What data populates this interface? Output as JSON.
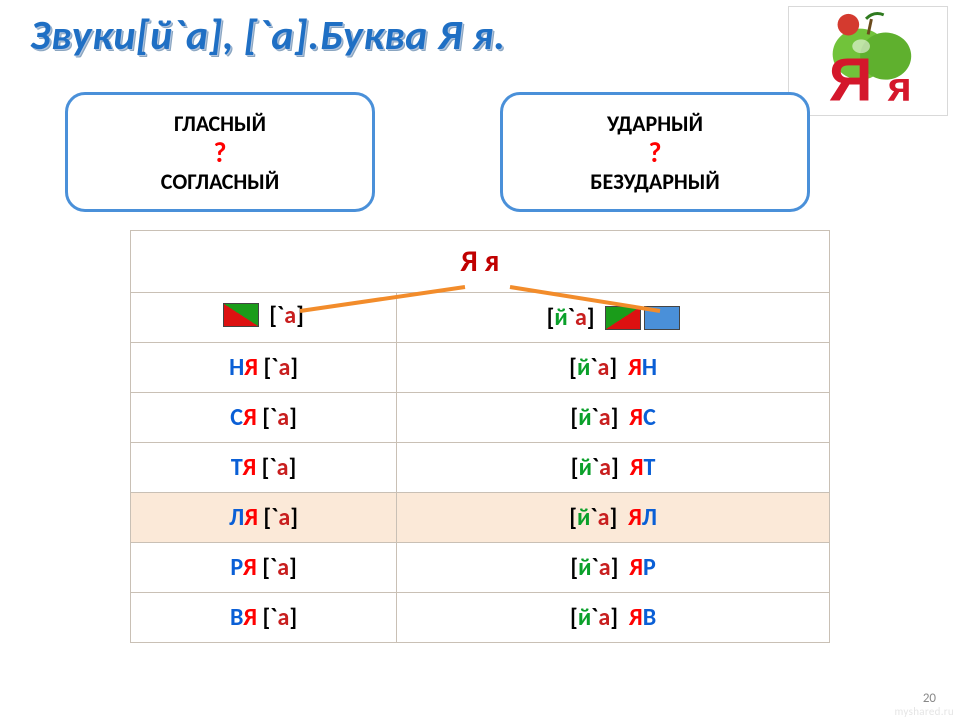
{
  "heading": "Звуки[й`а], [`а].Буква Я я.",
  "box_left": {
    "top": "ГЛАСНЫЙ",
    "q": "?",
    "bottom": "СОГЛАСНЫЙ"
  },
  "box_right": {
    "top": "УДАРНЫЙ",
    "q": "?",
    "bottom": "БЕЗУДАРНЫЙ"
  },
  "corner_letters": {
    "big": "Я",
    "small": "я"
  },
  "table": {
    "header": "Я я",
    "sub_left_phon": "[`а]",
    "sub_right_phon": "[й`а]",
    "rows": [
      {
        "left_cons": "Н",
        "right_cons": "Н",
        "alt": false
      },
      {
        "left_cons": "С",
        "right_cons": "С",
        "alt": false
      },
      {
        "left_cons": "Т",
        "right_cons": "Т",
        "alt": false
      },
      {
        "left_cons": "Л",
        "right_cons": "Л",
        "alt": true
      },
      {
        "left_cons": "Р",
        "right_cons": "Р",
        "alt": false
      },
      {
        "left_cons": "В",
        "right_cons": "В",
        "alt": false
      }
    ],
    "ya": "Я",
    "left_phon_open": "[`",
    "left_phon_a": "а",
    "left_phon_close": "]",
    "right_phon_open": "[",
    "right_phon_y": "й",
    "right_phon_mark": "`",
    "right_phon_a": "а",
    "right_phon_close": "]"
  },
  "colors": {
    "heading": "#1f6fc4",
    "box_border": "#4a90d9",
    "red": "#ff0000",
    "dark_red": "#c00000",
    "a_red": "#c81e1e",
    "green": "#0aa02a",
    "blue": "#0a5fd6",
    "alt_bg": "#fbe9d8",
    "cell_border": "#c9c0b5"
  },
  "page_number": "20",
  "watermark": "myshared.ru"
}
